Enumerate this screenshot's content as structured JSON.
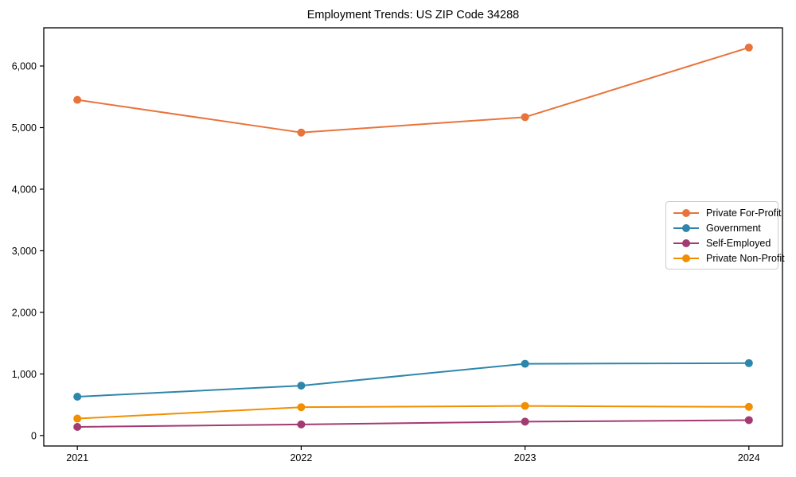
{
  "title": "Employment Trends: US ZIP Code 34288",
  "chart_data": {
    "type": "line",
    "title": "Employment Trends: US ZIP Code 34288",
    "x": [
      2021,
      2022,
      2023,
      2024
    ],
    "x_tick_labels": [
      "2021",
      "2022",
      "2023",
      "2024"
    ],
    "series": [
      {
        "name": "Private For-Profit",
        "color": "#E8743B",
        "values": [
          5450,
          4920,
          5170,
          6300
        ]
      },
      {
        "name": "Government",
        "color": "#2E86AB",
        "values": [
          630,
          810,
          1165,
          1175
        ]
      },
      {
        "name": "Self-Employed",
        "color": "#A23B72",
        "values": [
          140,
          180,
          225,
          250
        ]
      },
      {
        "name": "Private Non-Profit",
        "color": "#F18F01",
        "values": [
          275,
          460,
          480,
          465
        ]
      }
    ],
    "yticks": [
      0,
      1000,
      2000,
      3000,
      4000,
      5000,
      6000
    ],
    "ytick_labels": [
      "0",
      "1,000",
      "2,000",
      "3,000",
      "4,000",
      "5,000",
      "6,000"
    ],
    "xlabel": "",
    "ylabel": "",
    "ylim": [
      -170,
      6620
    ],
    "xlim": [
      2020.85,
      2024.15
    ],
    "grid": false,
    "legend_position": "center right",
    "frame_color": "#000000",
    "background_color": "#ffffff"
  }
}
